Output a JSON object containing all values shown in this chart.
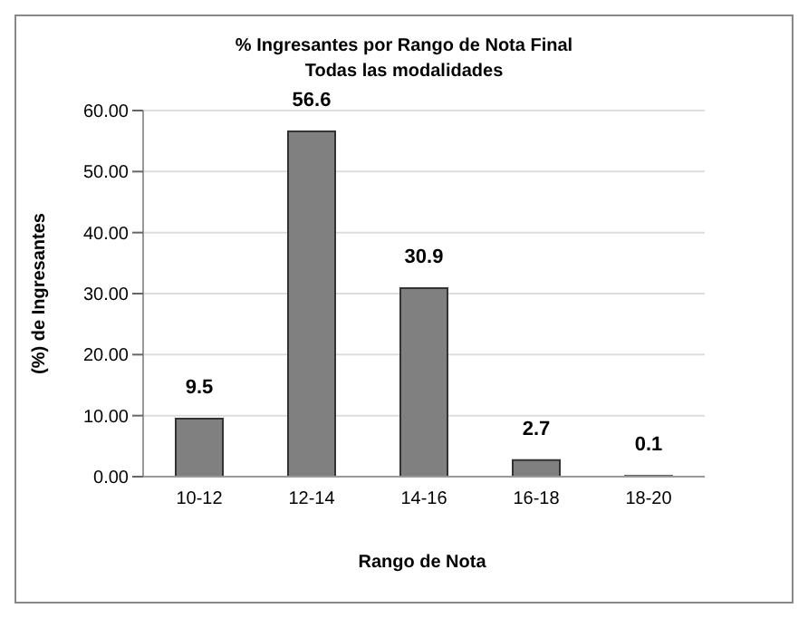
{
  "chart_data": {
    "type": "bar",
    "title": "% Ingresantes por Rango de Nota Final",
    "subtitle": "Todas las modalidades",
    "xlabel": "Rango de Nota",
    "ylabel": "(%) de Ingresantes",
    "categories": [
      "10-12",
      "12-14",
      "14-16",
      "16-18",
      "18-20"
    ],
    "values": [
      9.5,
      56.6,
      30.9,
      2.7,
      0.1
    ],
    "color": "#808080",
    "ylim": [
      0,
      60
    ],
    "yticks": [
      {
        "value": 0,
        "label": "0.00"
      },
      {
        "value": 10,
        "label": "10.00"
      },
      {
        "value": 20,
        "label": "20.00"
      },
      {
        "value": 30,
        "label": "30.00"
      },
      {
        "value": 40,
        "label": "40.00"
      },
      {
        "value": 50,
        "label": "50.00"
      },
      {
        "value": 60,
        "label": "60.00"
      }
    ],
    "grid": "y",
    "legend": false,
    "data_labels": true
  }
}
